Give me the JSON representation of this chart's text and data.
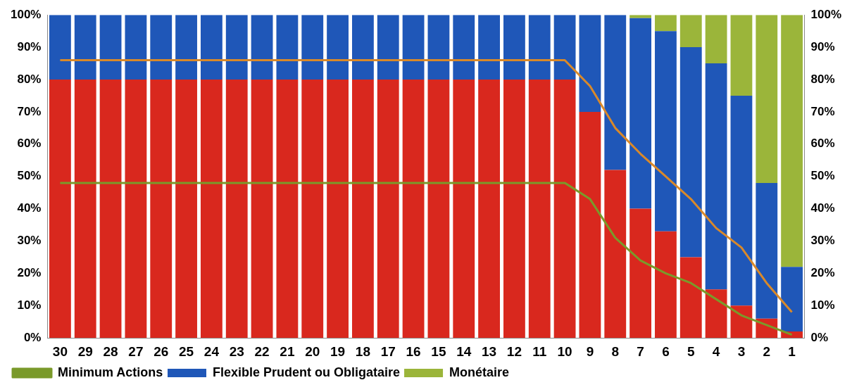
{
  "chart_data": {
    "type": "bar",
    "stacked": true,
    "categories": [
      "30",
      "29",
      "28",
      "27",
      "26",
      "25",
      "24",
      "23",
      "22",
      "21",
      "20",
      "19",
      "18",
      "17",
      "16",
      "15",
      "14",
      "13",
      "12",
      "11",
      "10",
      "9",
      "8",
      "7",
      "6",
      "5",
      "4",
      "3",
      "2",
      "1"
    ],
    "series": [
      {
        "color": "#d9281e",
        "values": [
          80,
          80,
          80,
          80,
          80,
          80,
          80,
          80,
          80,
          80,
          80,
          80,
          80,
          80,
          80,
          80,
          80,
          80,
          80,
          80,
          80,
          70,
          52,
          40,
          33,
          25,
          15,
          10,
          6,
          2
        ]
      },
      {
        "name": "Flexible Prudent ou Obligataire",
        "color": "#1f57b8",
        "values": [
          20,
          20,
          20,
          20,
          20,
          20,
          20,
          20,
          20,
          20,
          20,
          20,
          20,
          20,
          20,
          20,
          20,
          20,
          20,
          20,
          20,
          30,
          48,
          59,
          62,
          65,
          70,
          65,
          42,
          20
        ]
      },
      {
        "name": "Monétaire",
        "color": "#9bb53a",
        "values": [
          0,
          0,
          0,
          0,
          0,
          0,
          0,
          0,
          0,
          0,
          0,
          0,
          0,
          0,
          0,
          0,
          0,
          0,
          0,
          0,
          0,
          0,
          0,
          1,
          5,
          10,
          15,
          25,
          52,
          78
        ]
      },
      {
        "type": "line",
        "color": "#d9892a",
        "values": [
          86,
          86,
          86,
          86,
          86,
          86,
          86,
          86,
          86,
          86,
          86,
          86,
          86,
          86,
          86,
          86,
          86,
          86,
          86,
          86,
          86,
          78,
          65,
          57,
          50,
          43,
          34,
          28,
          17,
          8
        ]
      },
      {
        "type": "line",
        "name": "Minimum Actions",
        "color": "#7a9a2a",
        "values": [
          48,
          48,
          48,
          48,
          48,
          48,
          48,
          48,
          48,
          48,
          48,
          48,
          48,
          48,
          48,
          48,
          48,
          48,
          48,
          48,
          48,
          43,
          31,
          24,
          20,
          17,
          12,
          7,
          4,
          1
        ]
      }
    ],
    "ylim": [
      0,
      100
    ],
    "yticks": [
      {
        "value": 0,
        "label": "0%"
      },
      {
        "value": 10,
        "label": "10%"
      },
      {
        "value": 20,
        "label": "20%"
      },
      {
        "value": 30,
        "label": "30%"
      },
      {
        "value": 40,
        "label": "40%"
      },
      {
        "value": 50,
        "label": "50%"
      },
      {
        "value": 60,
        "label": "60%"
      },
      {
        "value": 70,
        "label": "70%"
      },
      {
        "value": 80,
        "label": "80%"
      },
      {
        "value": 90,
        "label": "90%"
      },
      {
        "value": 100,
        "label": "100%"
      }
    ],
    "y2lim": [
      0,
      100
    ],
    "y2ticks": [
      {
        "value": 0,
        "label": "0%"
      },
      {
        "value": 10,
        "label": "10%"
      },
      {
        "value": 20,
        "label": "20%"
      },
      {
        "value": 30,
        "label": "30%"
      },
      {
        "value": 40,
        "label": "40%"
      },
      {
        "value": 50,
        "label": "50%"
      },
      {
        "value": 60,
        "label": "60%"
      },
      {
        "value": 70,
        "label": "70%"
      },
      {
        "value": 80,
        "label": "80%"
      },
      {
        "value": 90,
        "label": "90%"
      },
      {
        "value": 100,
        "label": "100%"
      }
    ],
    "grid": false,
    "legend": "bottom",
    "marker": "none"
  }
}
